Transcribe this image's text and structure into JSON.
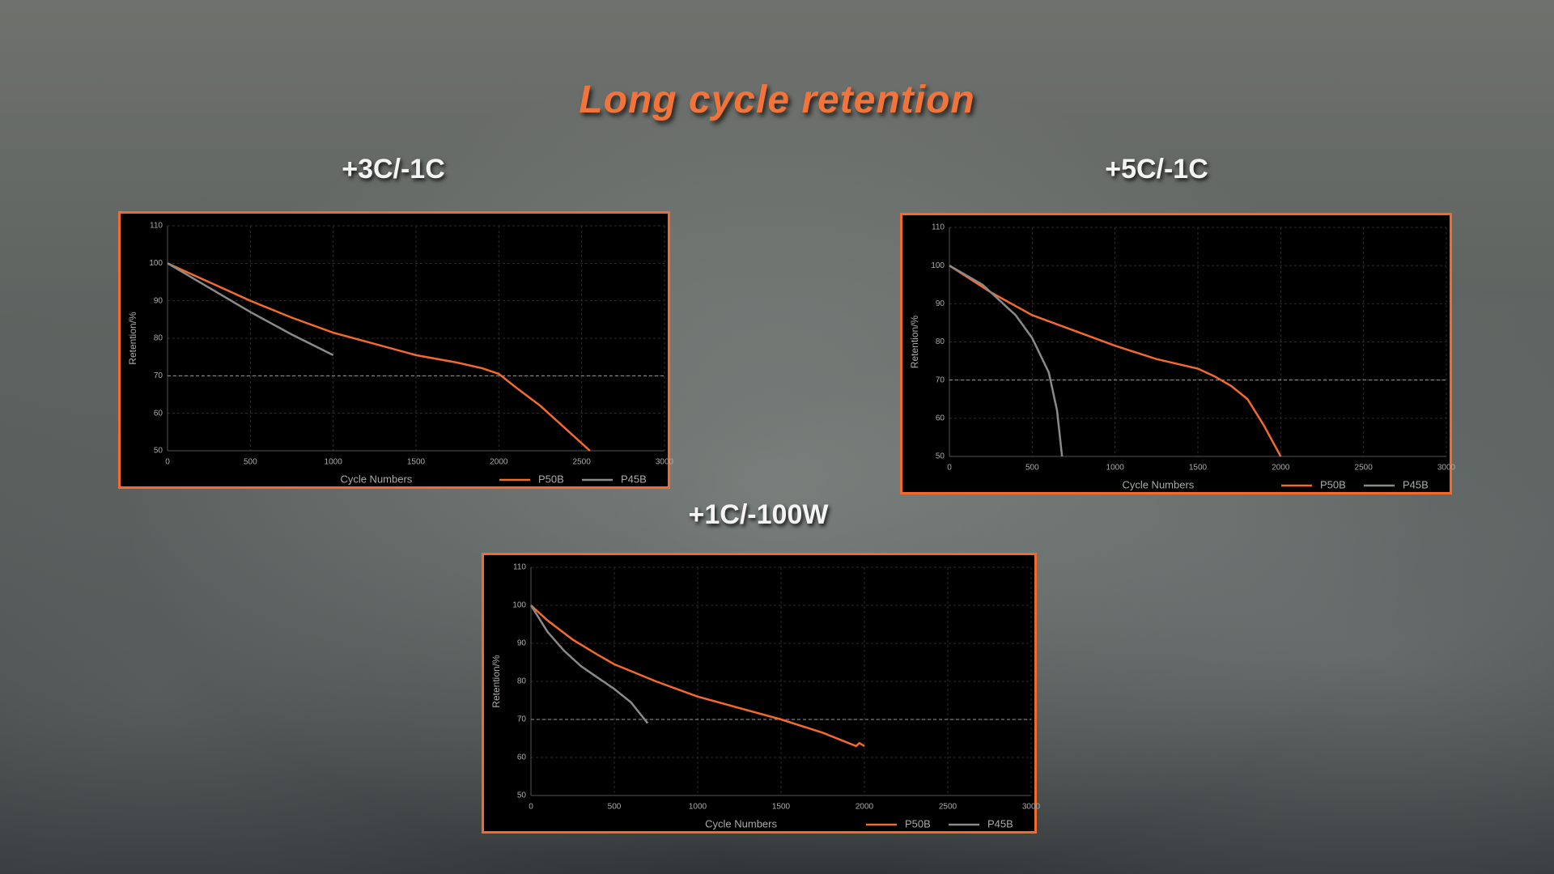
{
  "title": "Long cycle retention",
  "chart_data": [
    {
      "type": "line",
      "title": "+3C/-1C",
      "xlabel": "Cycle Numbers",
      "ylabel": "Retention/%",
      "xlim": [
        0,
        3000
      ],
      "ylim": [
        50,
        110
      ],
      "xticks": [
        0,
        500,
        1000,
        1500,
        2000,
        2500,
        3000
      ],
      "yticks": [
        50,
        60,
        70,
        80,
        90,
        100,
        110
      ],
      "grid": true,
      "reference_line": 70,
      "legend": "bottom-right",
      "series": [
        {
          "name": "P50B",
          "color": "#f26a2e",
          "x": [
            0,
            250,
            500,
            750,
            1000,
            1250,
            1500,
            1750,
            1900,
            2000,
            2100,
            2250,
            2400,
            2550
          ],
          "values": [
            100,
            95,
            90,
            85.5,
            81.5,
            78.5,
            75.5,
            73.5,
            72,
            70.5,
            67,
            62,
            56,
            50
          ]
        },
        {
          "name": "P45B",
          "color": "#8a8a8a",
          "x": [
            0,
            250,
            500,
            750,
            1000
          ],
          "values": [
            100,
            93.5,
            87,
            81,
            75.5
          ]
        }
      ]
    },
    {
      "type": "line",
      "title": "+5C/-1C",
      "xlabel": "Cycle Numbers",
      "ylabel": "Retention/%",
      "xlim": [
        0,
        3000
      ],
      "ylim": [
        50,
        110
      ],
      "xticks": [
        0,
        500,
        1000,
        1500,
        2000,
        2500,
        3000
      ],
      "yticks": [
        50,
        60,
        70,
        80,
        90,
        100,
        110
      ],
      "grid": true,
      "reference_line": 70,
      "legend": "bottom-right",
      "series": [
        {
          "name": "P50B",
          "color": "#f26a2e",
          "x": [
            0,
            250,
            500,
            750,
            1000,
            1250,
            1500,
            1600,
            1700,
            1800,
            1900,
            2000
          ],
          "values": [
            100,
            93,
            87,
            83,
            79,
            75.5,
            73,
            71,
            68.5,
            65,
            58,
            50
          ]
        },
        {
          "name": "P45B",
          "color": "#8a8a8a",
          "x": [
            0,
            200,
            400,
            500,
            600,
            650,
            680
          ],
          "values": [
            100,
            95,
            87,
            81,
            72,
            62,
            50
          ]
        }
      ]
    },
    {
      "type": "line",
      "title": "+1C/-100W",
      "xlabel": "Cycle Numbers",
      "ylabel": "Retention/%",
      "xlim": [
        0,
        3000
      ],
      "ylim": [
        50,
        110
      ],
      "xticks": [
        0,
        500,
        1000,
        1500,
        2000,
        2500,
        3000
      ],
      "yticks": [
        50,
        60,
        70,
        80,
        90,
        100,
        110
      ],
      "grid": true,
      "reference_line": 70,
      "legend": "bottom-right",
      "series": [
        {
          "name": "P50B",
          "color": "#f26a2e",
          "x": [
            0,
            100,
            250,
            400,
            500,
            750,
            1000,
            1250,
            1500,
            1750,
            1950,
            1970,
            2000
          ],
          "values": [
            100,
            96,
            91,
            87,
            84.5,
            80,
            76,
            73,
            70,
            66.5,
            63,
            63.8,
            63
          ]
        },
        {
          "name": "P45B",
          "color": "#8a8a8a",
          "x": [
            0,
            100,
            200,
            300,
            400,
            500,
            600,
            700
          ],
          "values": [
            100,
            93,
            88,
            84,
            81,
            78,
            74.5,
            69
          ]
        }
      ]
    }
  ]
}
